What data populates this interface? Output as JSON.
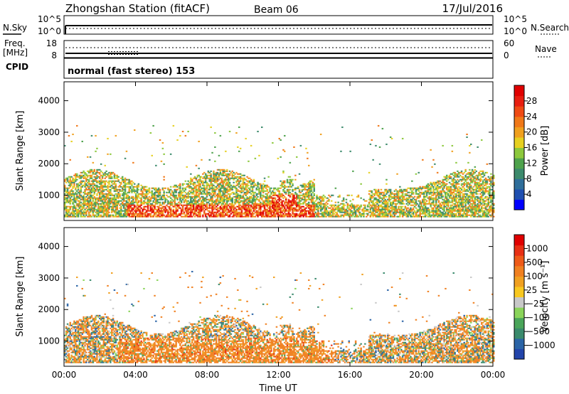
{
  "header": {
    "station": "Zhongshan Station (fitACF)",
    "beam": "Beam 06",
    "date": "17/Jul/2016"
  },
  "top_panels": {
    "nsky_label": "N.Sky",
    "nsearch_label": "N.Search",
    "freq_label": "Freq.",
    "freq_unit": "[MHz]",
    "nave_label": "Nave",
    "cpid_label": "CPID",
    "cpid_text": "normal (fast stereo) 153",
    "noise_left_ticks": [
      "10^5",
      "10^0"
    ],
    "noise_right_ticks": [
      "10^5",
      "10^0"
    ],
    "freq_left_ticks": [
      "18",
      "8"
    ],
    "nave_right_ticks": [
      "60",
      "0"
    ]
  },
  "chart_data": [
    {
      "type": "heatmap",
      "name": "power",
      "ylabel": "Slant Range [km]",
      "ylim": [
        200,
        4600
      ],
      "yticks": [
        "4000",
        "3000",
        "2000",
        "1000"
      ],
      "xlim_hours": [
        0,
        24
      ],
      "xticks": [
        "00:00",
        "04:00",
        "08:00",
        "12:00",
        "16:00",
        "20:00",
        "00:00"
      ],
      "colorbar": {
        "label": "Power [dB]",
        "ticks": [
          "28",
          "24",
          "20",
          "16",
          "12",
          "8",
          "4"
        ],
        "colors": [
          "#0000ff",
          "#1f4fb0",
          "#2f6e9a",
          "#3c8a6c",
          "#4ea24c",
          "#8cc83c",
          "#e6d020",
          "#f0a01e",
          "#f07818",
          "#ef4a14",
          "#e81e10",
          "#e00000"
        ]
      }
    },
    {
      "type": "heatmap",
      "name": "velocity",
      "ylabel": "Slant Range [km]",
      "ylim": [
        200,
        4600
      ],
      "yticks": [
        "4000",
        "3000",
        "2000",
        "1000"
      ],
      "xlim_hours": [
        0,
        24
      ],
      "xticks": [
        "00:00",
        "04:00",
        "08:00",
        "12:00",
        "16:00",
        "20:00",
        "00:00"
      ],
      "xlabel": "Time UT",
      "colorbar": {
        "label": "Velocity [m s⁻¹]",
        "ticks": [
          "1000",
          "500",
          "100",
          "25",
          "−25",
          "−100",
          "−500",
          "−1000"
        ],
        "colors": [
          "#2244aa",
          "#2b64a6",
          "#3a8a6c",
          "#4aa55a",
          "#8ad45a",
          "#c8c8c8",
          "#f8c820",
          "#f0a020",
          "#f08020",
          "#ee5a18",
          "#e83014",
          "#e00000"
        ]
      }
    }
  ]
}
